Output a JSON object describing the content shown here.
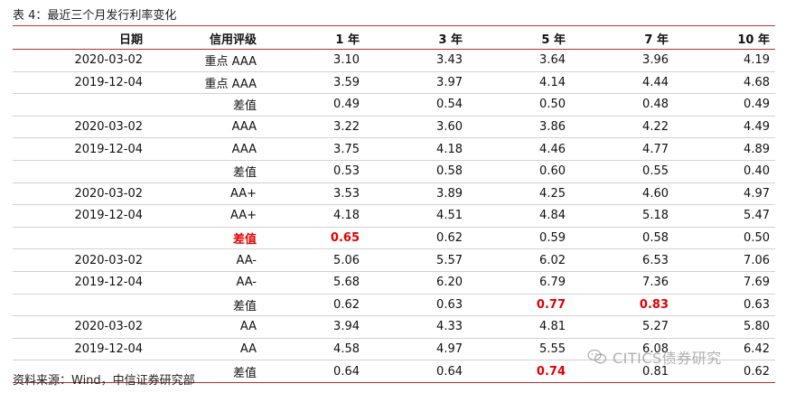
{
  "caption": "表 4：最近三个月发行利率变化",
  "columns": [
    "日期",
    "信用评级",
    "1 年",
    "3 年",
    "5 年",
    "7 年",
    "10 年"
  ],
  "rows": [
    {
      "date": "2020-03-02",
      "rating": "重点 AAA",
      "values": [
        "3.10",
        "3.43",
        "3.64",
        "3.96",
        "4.19"
      ]
    },
    {
      "date": "2019-12-04",
      "rating": "重点 AAA",
      "values": [
        "3.59",
        "3.97",
        "4.14",
        "4.44",
        "4.68"
      ]
    },
    {
      "date": "",
      "rating": "差值",
      "values": [
        "0.49",
        "0.54",
        "0.50",
        "0.48",
        "0.49"
      ]
    },
    {
      "date": "2020-03-02",
      "rating": "AAA",
      "values": [
        "3.22",
        "3.60",
        "3.86",
        "4.22",
        "4.49"
      ]
    },
    {
      "date": "2019-12-04",
      "rating": "AAA",
      "values": [
        "3.75",
        "4.18",
        "4.46",
        "4.77",
        "4.89"
      ]
    },
    {
      "date": "",
      "rating": "差值",
      "values": [
        "0.53",
        "0.58",
        "0.60",
        "0.55",
        "0.40"
      ]
    },
    {
      "date": "2020-03-02",
      "rating": "AA+",
      "values": [
        "3.53",
        "3.89",
        "4.25",
        "4.60",
        "4.97"
      ]
    },
    {
      "date": "2019-12-04",
      "rating": "AA+",
      "values": [
        "4.18",
        "4.51",
        "4.84",
        "5.18",
        "5.47"
      ]
    },
    {
      "date": "",
      "rating": "差值",
      "rating_highlight": true,
      "highlight": [
        0
      ],
      "values": [
        "0.65",
        "0.62",
        "0.59",
        "0.58",
        "0.50"
      ]
    },
    {
      "date": "2020-03-02",
      "rating": "AA-",
      "values": [
        "5.06",
        "5.57",
        "6.02",
        "6.53",
        "7.06"
      ]
    },
    {
      "date": "2019-12-04",
      "rating": "AA-",
      "values": [
        "5.68",
        "6.20",
        "6.79",
        "7.36",
        "7.69"
      ]
    },
    {
      "date": "",
      "rating": "差值",
      "highlight": [
        2,
        3
      ],
      "values": [
        "0.62",
        "0.63",
        "0.77",
        "0.83",
        "0.63"
      ]
    },
    {
      "date": "2020-03-02",
      "rating": "AA",
      "values": [
        "3.94",
        "4.33",
        "4.81",
        "5.27",
        "5.80"
      ]
    },
    {
      "date": "2019-12-04",
      "rating": "AA",
      "values": [
        "4.58",
        "4.97",
        "5.55",
        "6.08",
        "6.42"
      ]
    },
    {
      "date": "",
      "rating": "差值",
      "highlight": [
        2
      ],
      "values": [
        "0.64",
        "0.64",
        "0.74",
        "0.81",
        "0.62"
      ]
    }
  ],
  "source": "资料来源：Wind，中信证券研究部",
  "watermark": "CITICS债券研究",
  "colors": {
    "highlight": "#e30000",
    "rule": "#b03030"
  }
}
